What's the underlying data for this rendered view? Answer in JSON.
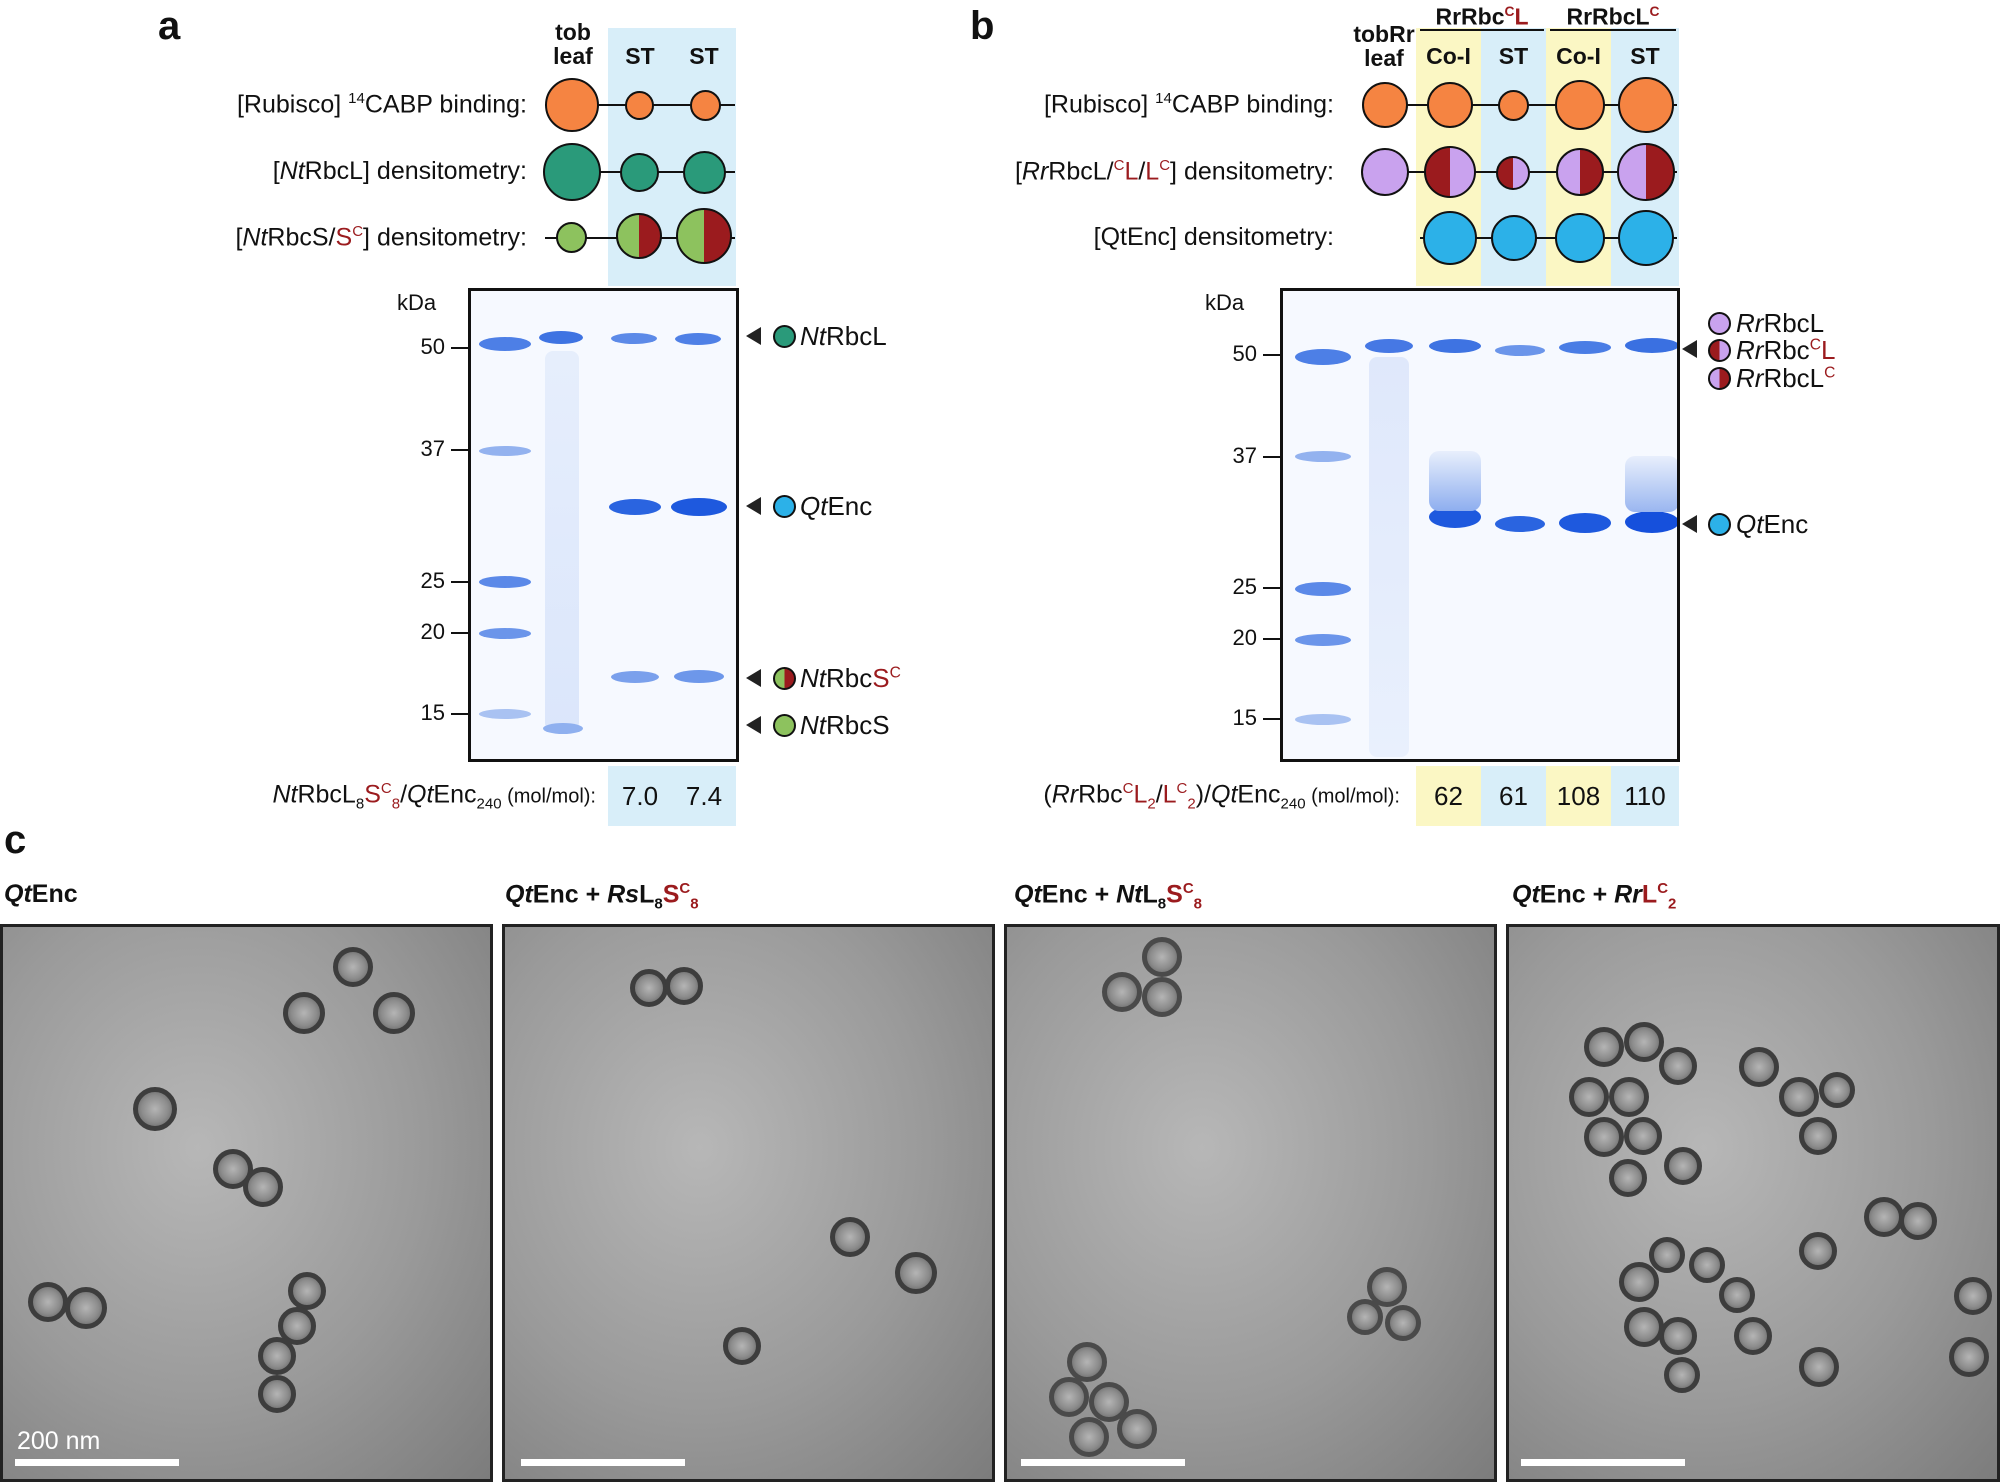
{
  "panel_a": {
    "label": "a",
    "lane_headers": [
      "tob\nleaf",
      "ST",
      "ST"
    ],
    "rows": {
      "binding_pre": "[Rubisco] ",
      "binding_sup": "14",
      "binding_post": "CABP binding:",
      "ntrbcl_pre": "[",
      "ntrbcl_it": "Nt",
      "ntrbcl_post": "RbcL] densitometry:",
      "ntrbcs_pre": "[",
      "ntrbcs_it": "Nt",
      "ntrbcs_mid": "RbcS/",
      "ntrbcs_red": "S",
      "ntrbcs_redsup": "C",
      "ntrbcs_post": "] densitometry:"
    },
    "kda": "kDa",
    "mw_markers": [
      "50",
      "37",
      "25",
      "20",
      "15"
    ],
    "annotations": {
      "ntrbcl_it": "Nt",
      "ntrbcl_rest": "RbcL",
      "qtenc_it": "Qt",
      "qtenc_rest": "Enc",
      "ntrbcsc_it": "Nt",
      "ntrbcsc_rest": "Rbc",
      "ntrbcsc_red": "S",
      "ntrbcsc_redsup": "C",
      "ntrbcs_it": "Nt",
      "ntrbcs_rest": "RbcS"
    },
    "ratio_label": {
      "p1": "Nt",
      "p2": "RbcL",
      "sub8a": "8",
      "red": "S",
      "redsup": "C",
      "redsub": "8",
      "slash": "/",
      "p3": "Qt",
      "p4": "Enc",
      "sub240": "240",
      "unit": " (mol/mol):"
    },
    "ratios": [
      "7.0",
      "7.4"
    ]
  },
  "panel_b": {
    "label": "b",
    "group_labels": [
      {
        "pre": "RrRbc",
        "red": "C",
        "redsup": true,
        "post": "L"
      },
      {
        "pre": "RrRbcL",
        "red": "C",
        "redsup": true,
        "post": ""
      }
    ],
    "lane_headers": [
      "tobRr\nleaf",
      "Co-I",
      "ST",
      "Co-I",
      "ST"
    ],
    "rows": {
      "binding_pre": "[Rubisco] ",
      "binding_sup": "14",
      "binding_post": "CABP binding:",
      "rr_pre": "[",
      "rr_it": "Rr",
      "rr_mid": "RbcL/",
      "rr_red1sup": "C",
      "rr_red1": "L",
      "rr_slash": "/",
      "rr_red2": "L",
      "rr_red2sup": "C",
      "rr_post": "] densitometry:",
      "qtenc": "[QtEnc] densitometry:"
    },
    "kda": "kDa",
    "mw_markers": [
      "50",
      "37",
      "25",
      "20",
      "15"
    ],
    "annotations": {
      "rrrbcl_it": "Rr",
      "rrrbcl_rest": "RbcL",
      "rrrbccl_it": "Rr",
      "rrrbccl_rest": "Rbc",
      "rrrbccl_redsup": "C",
      "rrrbccl_red": "L",
      "rrrbclc_it": "Rr",
      "rrrbclc_rest": "RbcL",
      "rrrbclc_redsup": "C",
      "qtenc_it": "Qt",
      "qtenc_rest": "Enc"
    },
    "ratio_label": {
      "open": "(",
      "p1": "Rr",
      "p2": "Rbc",
      "redsup1": "C",
      "red1": "L",
      "redsub1": "2",
      "slash1": "/",
      "red2": "L",
      "redsup2": "C",
      "redsub2": "2",
      "close": ")/",
      "p3": "Qt",
      "p4": "Enc",
      "sub240": "240",
      "unit": " (mol/mol):"
    },
    "ratios": [
      "62",
      "61",
      "108",
      "110"
    ]
  },
  "panel_c": {
    "label": "c",
    "titles": [
      {
        "it": "Qt",
        "rest": "Enc",
        "plus": "",
        "it2": "",
        "l": "",
        "lsub": "",
        "red": "",
        "redsup": "",
        "redsub": ""
      },
      {
        "it": "Qt",
        "rest": "Enc + ",
        "plus": "",
        "it2": "Rs",
        "l": "L",
        "lsub": "8",
        "red": "S",
        "redsup": "C",
        "redsub": "8"
      },
      {
        "it": "Qt",
        "rest": "Enc + ",
        "plus": "",
        "it2": "Nt",
        "l": "L",
        "lsub": "8",
        "red": "S",
        "redsup": "C",
        "redsub": "8"
      },
      {
        "it": "Qt",
        "rest": "Enc + ",
        "plus": "",
        "it2": "Rr",
        "l": "",
        "lsub": "",
        "red": "L",
        "redsup": "C",
        "redsub": "2"
      }
    ],
    "scale_label": "200 nm"
  },
  "colors": {
    "binding": "#f58442",
    "ntrbcl": "#2a9a7a",
    "ntrbcs": "#8dc25e",
    "red": "#9b1b1e",
    "rr_purple": "#c9a2ee",
    "qtenc": "#2cb1e8",
    "shade_blue": "#d8eef9",
    "shade_yellow": "#fbf7c4",
    "gel_band": "#2a64e0"
  }
}
